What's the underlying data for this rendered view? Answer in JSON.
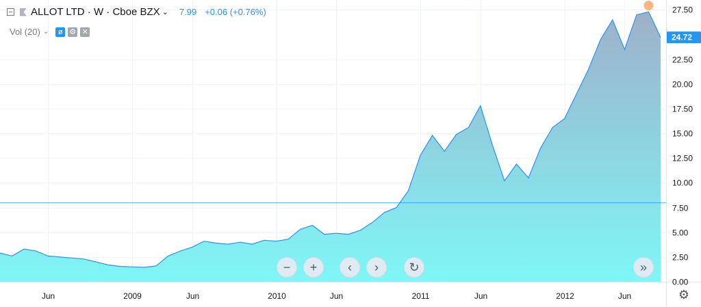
{
  "header": {
    "symbol": "ALLOT LTD · W · Cboe BZX",
    "price": "7.99",
    "change": "+0.06 (+0.76%)"
  },
  "volume_indicator": {
    "label": "Vol (20)",
    "hide_icon": "eye-slash-icon",
    "settings_icon": "gear-icon",
    "remove_icon": "close-icon"
  },
  "navigation": {
    "zoom_out_icon": "minus-icon",
    "zoom_in_icon": "plus-icon",
    "scroll_left_icon": "chevron-left-icon",
    "scroll_right_icon": "chevron-right-icon",
    "reset_icon": "reset-icon",
    "go_to_latest_icon": "double-chevron-right-icon"
  },
  "colors": {
    "line": "#2196f3",
    "area_top": "#9eb0c9",
    "area_bottom": "#7ff7f7",
    "last_price_badge": "#2196f3",
    "current_price_line": "#2196f3",
    "marker": "#ffa76b"
  },
  "chart_data": {
    "type": "area",
    "x_axis": {
      "start": "2008-02",
      "end": "2012-09",
      "tick_labels": [
        "Jun",
        "2009",
        "Jun",
        "2010",
        "Jun",
        "2011",
        "Jun",
        "2012",
        "Jun"
      ]
    },
    "y_axis": {
      "position": "right",
      "ylim": [
        0,
        28.5
      ],
      "tick_labels": [
        "0.00",
        "2.50",
        "5.00",
        "7.50",
        "10.00",
        "12.50",
        "15.00",
        "17.50",
        "20.00",
        "22.50",
        "27.50"
      ],
      "tick_values": [
        0,
        2.5,
        5,
        7.5,
        10,
        12.5,
        15,
        17.5,
        20,
        22.5,
        27.5
      ]
    },
    "last_price_label": "24.72",
    "last_price": 24.72,
    "current_price_line": 7.99,
    "grid": true,
    "series": [
      {
        "x": [
          "2008-02",
          "2008-03",
          "2008-04",
          "2008-05",
          "2008-06",
          "2008-07",
          "2008-08",
          "2008-09",
          "2008-10",
          "2008-11",
          "2008-12",
          "2009-01",
          "2009-02",
          "2009-03",
          "2009-04",
          "2009-05",
          "2009-06",
          "2009-07",
          "2009-08",
          "2009-09",
          "2009-10",
          "2009-11",
          "2009-12",
          "2010-01",
          "2010-02",
          "2010-03",
          "2010-04",
          "2010-05",
          "2010-06",
          "2010-07",
          "2010-08",
          "2010-09",
          "2010-10",
          "2010-11",
          "2010-12",
          "2011-01",
          "2011-02",
          "2011-03",
          "2011-04",
          "2011-05",
          "2011-06",
          "2011-07",
          "2011-08",
          "2011-09",
          "2011-10",
          "2011-11",
          "2011-12",
          "2012-01",
          "2012-02",
          "2012-03",
          "2012-04",
          "2012-05",
          "2012-06",
          "2012-07",
          "2012-08",
          "2012-09"
        ],
        "values": [
          2.9,
          2.6,
          3.3,
          3.1,
          2.6,
          2.5,
          2.4,
          2.3,
          2.0,
          1.7,
          1.55,
          1.5,
          1.45,
          1.6,
          2.6,
          3.1,
          3.5,
          4.1,
          3.9,
          3.8,
          4.0,
          3.8,
          4.2,
          4.1,
          4.3,
          5.3,
          5.7,
          4.8,
          4.9,
          4.8,
          5.2,
          6.0,
          7.0,
          7.5,
          9.2,
          12.8,
          14.8,
          13.2,
          14.9,
          15.6,
          17.8,
          13.8,
          10.2,
          11.9,
          10.5,
          13.5,
          15.6,
          16.5,
          19.0,
          21.5,
          24.5,
          26.5,
          23.5,
          27.0,
          27.3,
          24.72
        ]
      }
    ]
  }
}
